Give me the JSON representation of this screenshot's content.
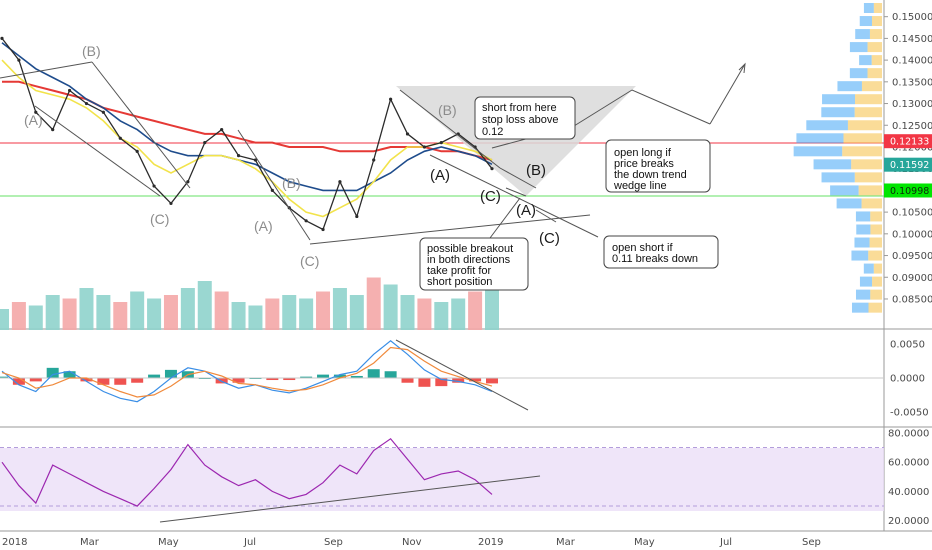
{
  "chart_data": [
    {
      "type": "line",
      "panel": "price",
      "title": "",
      "ylim": [
        0.082,
        0.152
      ],
      "x_ticks": [
        "2018",
        "Mar",
        "May",
        "Jul",
        "Sep",
        "Nov",
        "2019",
        "Mar",
        "May",
        "Jul",
        "Sep"
      ],
      "y_ticks": [
        "0.15000",
        "0.14500",
        "0.14000",
        "0.13500",
        "0.13000",
        "0.12500",
        "0.12000",
        "0.11500",
        "0.11000",
        "0.10500",
        "0.10000",
        "0.09500",
        "0.09000",
        "0.08500"
      ],
      "series": [
        {
          "values": [
            0.145,
            0.14,
            0.128,
            0.124,
            0.133,
            0.13,
            0.128,
            0.122,
            0.119,
            0.111,
            0.107,
            0.112,
            0.121,
            0.124,
            0.118,
            0.117,
            0.11,
            0.106,
            0.103,
            0.101,
            0.112,
            0.104,
            0.117,
            0.131,
            0.123,
            0.12,
            0.121,
            0.123,
            0.12,
            0.115
          ]
        },
        {
          "values": [
            0.135,
            0.135,
            0.134,
            0.133,
            0.132,
            0.131,
            0.129,
            0.128,
            0.127,
            0.126,
            0.125,
            0.124,
            0.123,
            0.123,
            0.122,
            0.121,
            0.121,
            0.12,
            0.12,
            0.12,
            0.119,
            0.119,
            0.119,
            0.12,
            0.12,
            0.12,
            0.119,
            0.119,
            0.118,
            0.117
          ]
        },
        {
          "values": [
            0.144,
            0.141,
            0.138,
            0.136,
            0.134,
            0.131,
            0.129,
            0.126,
            0.124,
            0.121,
            0.119,
            0.118,
            0.118,
            0.118,
            0.117,
            0.116,
            0.114,
            0.112,
            0.111,
            0.11,
            0.11,
            0.11,
            0.112,
            0.114,
            0.117,
            0.119,
            0.12,
            0.119,
            0.118,
            0.116
          ]
        },
        {
          "values": [
            0.14,
            0.136,
            0.133,
            0.132,
            0.131,
            0.129,
            0.126,
            0.122,
            0.12,
            0.116,
            0.114,
            0.116,
            0.118,
            0.118,
            0.117,
            0.115,
            0.112,
            0.108,
            0.105,
            0.104,
            0.106,
            0.108,
            0.112,
            0.117,
            0.12,
            0.12,
            0.121,
            0.12,
            0.119,
            0.117
          ]
        }
      ],
      "price_tags": [
        {
          "label": "0.12133",
          "value": 0.12133,
          "color": "#f23645"
        },
        {
          "label": "0.11592",
          "value": 0.11592,
          "color": "#26a69a"
        },
        {
          "label": "0.10998",
          "value": 0.10998,
          "color": "#00e600"
        }
      ],
      "wave_labels": [
        "(A)",
        "(B)",
        "(C)",
        "(A)",
        "(B)",
        "(C)",
        "(A)",
        "(B)",
        "(C)",
        "(A)",
        "(B)",
        "(C)"
      ],
      "annotations": [
        [
          "short from here",
          "stop loss above",
          "0.12"
        ],
        [
          "open long if",
          "price breaks",
          "the down trend",
          "wedge line"
        ],
        [
          "possible breakout",
          "in both directions",
          "take profit for",
          "short position"
        ],
        [
          "open short if",
          "0.11 breaks down"
        ]
      ],
      "volume": [
        0.3,
        0.4,
        0.35,
        0.5,
        0.45,
        0.6,
        0.5,
        0.4,
        0.55,
        0.45,
        0.5,
        0.6,
        0.7,
        0.55,
        0.4,
        0.35,
        0.45,
        0.5,
        0.45,
        0.55,
        0.6,
        0.5,
        0.75,
        0.65,
        0.5,
        0.45,
        0.4,
        0.45,
        0.55,
        0.6
      ],
      "grid": false
    },
    {
      "type": "line",
      "panel": "macd",
      "ylim": [
        -0.0065,
        0.0065
      ],
      "y_ticks": [
        "0.0050",
        "0.0000",
        "-0.0050"
      ],
      "series": [
        {
          "values": [
            0.001,
            -0.001,
            -0.002,
            0.0005,
            0.001,
            -0.0005,
            -0.002,
            -0.003,
            -0.0035,
            -0.002,
            0.0,
            0.0015,
            0.001,
            -0.0005,
            -0.0015,
            -0.001,
            -0.0018,
            -0.0022,
            -0.0015,
            -0.0005,
            0.0005,
            0.001,
            0.0035,
            0.0055,
            0.0035,
            0.0012,
            -0.0002,
            -0.0005,
            -0.001,
            -0.002
          ]
        },
        {
          "values": [
            0.0008,
            0.0,
            -0.0015,
            -0.001,
            0.0,
            0.0,
            -0.001,
            -0.002,
            -0.0028,
            -0.0025,
            -0.0012,
            0.0005,
            0.001,
            0.0003,
            -0.0008,
            -0.001,
            -0.0015,
            -0.0019,
            -0.0017,
            -0.001,
            0.0,
            0.0007,
            0.0022,
            0.0045,
            0.0042,
            0.0025,
            0.001,
            0.0002,
            -0.0005,
            -0.0012
          ]
        }
      ],
      "histogram": [
        0.0002,
        -0.001,
        -0.0005,
        0.0015,
        0.001,
        -0.0005,
        -0.001,
        -0.001,
        -0.0007,
        0.0005,
        0.0012,
        0.001,
        0.0,
        -0.0008,
        -0.0007,
        0.0,
        -0.0003,
        -0.0003,
        0.0002,
        0.0005,
        0.0005,
        0.0003,
        0.0013,
        0.001,
        -0.0007,
        -0.0013,
        -0.0012,
        -0.0007,
        -0.0005,
        -0.0008
      ]
    },
    {
      "type": "line",
      "panel": "rsi",
      "ylim": [
        15,
        82
      ],
      "y_ticks": [
        "80.0000",
        "60.0000",
        "40.0000",
        "20.0000"
      ],
      "bands": [
        30,
        70
      ],
      "series": [
        {
          "values": [
            60,
            44,
            32,
            58,
            52,
            46,
            40,
            35,
            30,
            42,
            55,
            72,
            58,
            50,
            44,
            48,
            40,
            35,
            38,
            46,
            58,
            52,
            68,
            76,
            62,
            48,
            52,
            54,
            48,
            38
          ]
        }
      ]
    }
  ]
}
